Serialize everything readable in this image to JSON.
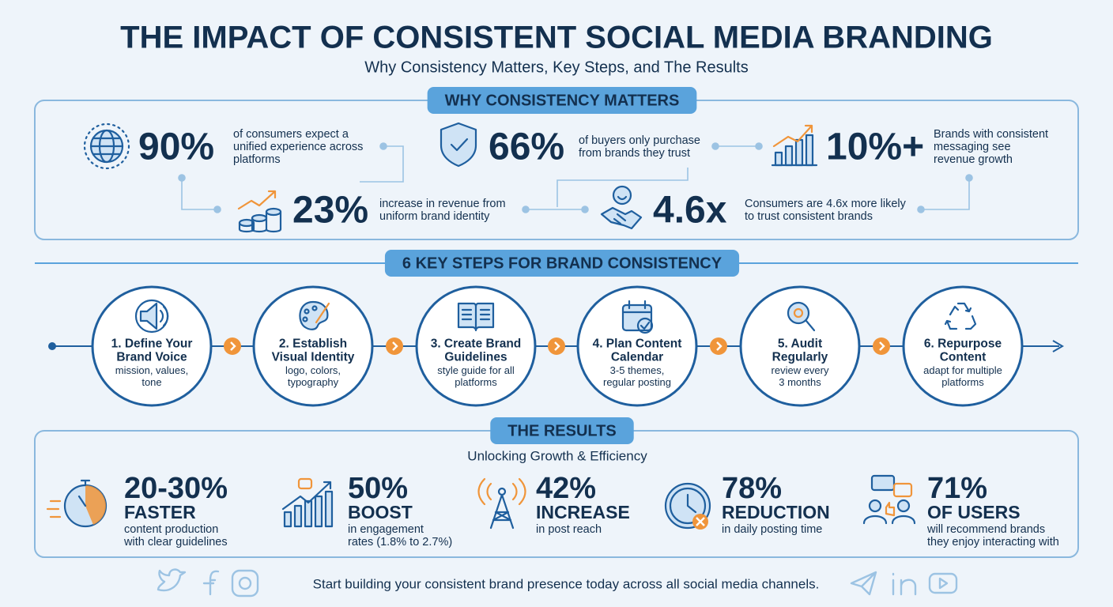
{
  "header": {
    "title": "THE IMPACT OF CONSISTENT SOCIAL MEDIA BRANDING",
    "subtitle": "Why Consistency Matters, Key Steps, and The Results"
  },
  "why": {
    "label": "WHY CONSISTENCY MATTERS",
    "stats": [
      {
        "value": "90%",
        "text": [
          "of consumers expect a",
          "unified experience across",
          "platforms"
        ]
      },
      {
        "value": "66%",
        "text": [
          "of buyers only purchase",
          "from brands they trust"
        ]
      },
      {
        "value": "10%+",
        "text": [
          "Brands with consistent",
          "messaging see",
          "revenue growth"
        ]
      },
      {
        "value": "23%",
        "text": [
          "increase in revenue from",
          "uniform brand identity"
        ]
      },
      {
        "value": "4.6x",
        "text": [
          "Consumers are 4.6x more likely",
          "to trust consistent brands"
        ]
      }
    ]
  },
  "steps": {
    "label": "6 KEY STEPS FOR BRAND CONSISTENCY",
    "items": [
      {
        "title": [
          "1. Define Your",
          "Brand Voice"
        ],
        "text": [
          "mission, values,",
          "tone"
        ]
      },
      {
        "title": [
          "2. Establish",
          "Visual Identity"
        ],
        "text": [
          "logo, colors,",
          "typography"
        ]
      },
      {
        "title": [
          "3. Create Brand",
          "Guidelines"
        ],
        "text": [
          "style guide for all",
          "platforms"
        ]
      },
      {
        "title": [
          "4. Plan Content",
          "Calendar"
        ],
        "text": [
          "3-5 themes,",
          "regular posting"
        ]
      },
      {
        "title": [
          "5. Audit",
          "Regularly"
        ],
        "text": [
          "review every",
          "3 months"
        ]
      },
      {
        "title": [
          "6. Repurpose",
          "Content"
        ],
        "text": [
          "adapt for multiple",
          "platforms"
        ]
      }
    ]
  },
  "results": {
    "label": "THE RESULTS",
    "subtitle": "Unlocking Growth & Efficiency",
    "items": [
      {
        "value": "20-30%",
        "label": "FASTER",
        "text": [
          "content production",
          "with clear guidelines"
        ]
      },
      {
        "value": "50%",
        "label": "BOOST",
        "text": [
          "in engagement",
          "rates (1.8% to 2.7%)"
        ]
      },
      {
        "value": "42%",
        "label": "INCREASE",
        "text": [
          "in post reach"
        ]
      },
      {
        "value": "78%",
        "label": "REDUCTION",
        "text": [
          "in daily posting time"
        ]
      },
      {
        "value": "71%",
        "label": "OF USERS",
        "text": [
          "will recommend brands",
          "they enjoy interacting with"
        ]
      }
    ]
  },
  "footer": {
    "text": "Start building your consistent brand presence today across all social media channels."
  }
}
